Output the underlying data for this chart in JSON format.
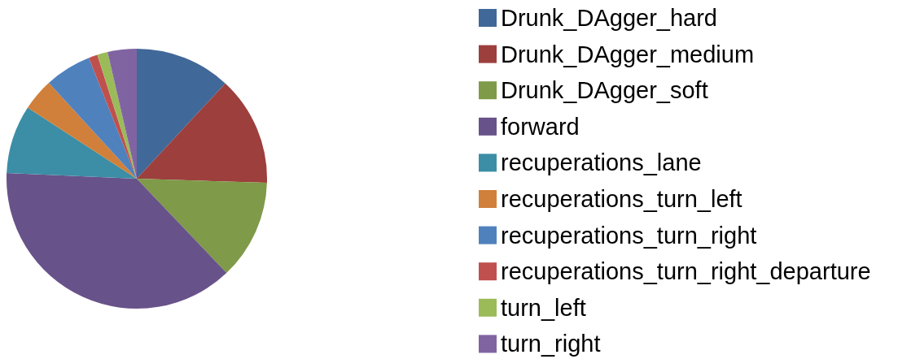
{
  "chart_data": {
    "type": "pie",
    "categories": [
      "Drunk_DAgger_hard",
      "Drunk_DAgger_medium",
      "Drunk_DAgger_soft",
      "forward",
      "recuperations_lane",
      "recuperations_turn_left",
      "recuperations_turn_right",
      "recuperations_turn_right_departure",
      "turn_left",
      "turn_right"
    ],
    "values": [
      11.9,
      13.6,
      12.4,
      37.8,
      8.5,
      4.0,
      5.8,
      1.1,
      1.3,
      3.6
    ],
    "colors": [
      "#406898",
      "#9c3f3d",
      "#7f9a48",
      "#68528a",
      "#3b8ea5",
      "#d0803a",
      "#4f81bd",
      "#c0504d",
      "#9bbb59",
      "#8064a2"
    ],
    "legend": "right"
  }
}
